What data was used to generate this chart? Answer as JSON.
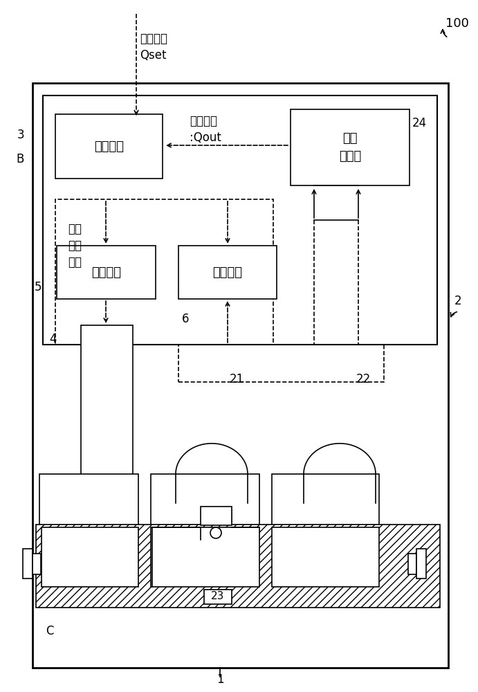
{
  "bg_color": "#ffffff",
  "num_100": "100",
  "num_2": "2",
  "num_1": "1",
  "num_3": "3",
  "num_B": "B",
  "num_4": "4",
  "num_5": "5",
  "num_6": "6",
  "num_21": "21",
  "num_22": "22",
  "num_23": "23",
  "num_24": "24",
  "num_C": "C",
  "t_qset": "指示流量\nQset",
  "t_qout": "测定流量\n:Qout",
  "t_valve": "阀控制部",
  "t_flow": "流量\n计算部",
  "t_piezo": "压电\n控制\n信号",
  "t_drive": "驱动电路",
  "t_diag": "诊断机构"
}
